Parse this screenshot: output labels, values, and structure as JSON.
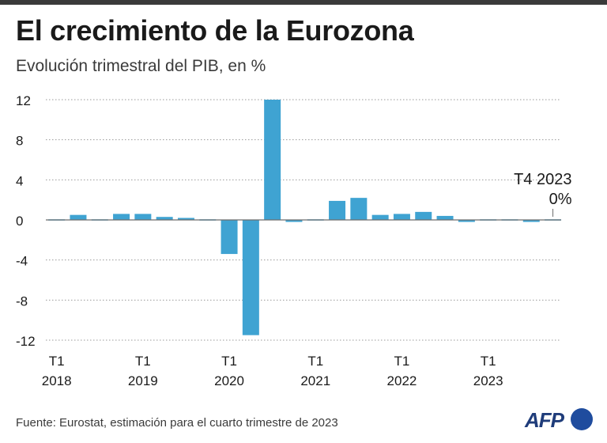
{
  "title": "El crecimiento de la Eurozona",
  "subtitle": "Evolución trimestral del PIB, en %",
  "source": "Fuente: Eurostat, estimación para el cuarto trimestre de 2023",
  "logo": "AFP",
  "colors": {
    "bar": "#3fa3d2",
    "axis": "#6d6d6d",
    "grid": "#9a9a9a",
    "text": "#1a1a1a"
  },
  "chart_data": {
    "type": "bar",
    "title": "El crecimiento de la Eurozona",
    "ylabel": "Evolución trimestral del PIB, en %",
    "ylim": [
      -12,
      12
    ],
    "y_ticks": [
      12,
      8,
      4,
      0,
      -4,
      -8,
      -12
    ],
    "grid": true,
    "categories": [
      "T1 2018",
      "T2 2018",
      "T3 2018",
      "T4 2018",
      "T1 2019",
      "T2 2019",
      "T3 2019",
      "T4 2019",
      "T1 2020",
      "T2 2020",
      "T3 2020",
      "T4 2020",
      "T1 2021",
      "T2 2021",
      "T3 2021",
      "T4 2021",
      "T1 2022",
      "T2 2022",
      "T3 2022",
      "T4 2022",
      "T1 2023",
      "T2 2023",
      "T3 2023",
      "T4 2023"
    ],
    "values": [
      -0.1,
      0.5,
      -0.1,
      0.6,
      0.6,
      0.3,
      0.2,
      -0.1,
      -3.4,
      -11.5,
      12.0,
      -0.2,
      0.1,
      1.9,
      2.2,
      0.5,
      0.6,
      0.8,
      0.4,
      -0.2,
      0.1,
      0.1,
      -0.2,
      0.0
    ],
    "x_tick_labels": [
      {
        "index": 0,
        "quarter": "T1",
        "year": "2018"
      },
      {
        "index": 4,
        "quarter": "T1",
        "year": "2019"
      },
      {
        "index": 8,
        "quarter": "T1",
        "year": "2020"
      },
      {
        "index": 12,
        "quarter": "T1",
        "year": "2021"
      },
      {
        "index": 16,
        "quarter": "T1",
        "year": "2022"
      },
      {
        "index": 20,
        "quarter": "T1",
        "year": "2023"
      }
    ],
    "annotation": {
      "index": 23,
      "label": "T4 2023",
      "value_label": "0%"
    }
  }
}
